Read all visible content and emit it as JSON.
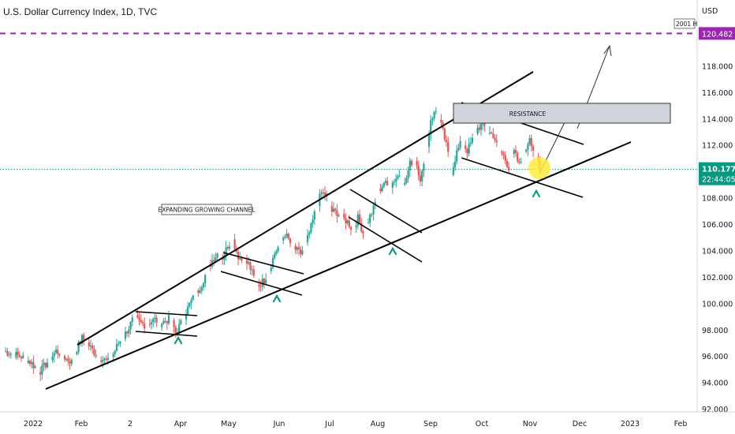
{
  "title": "U.S. Dollar Currency Index, 1D, TVC",
  "currency": "USD",
  "colors": {
    "up": "#26a69a",
    "down": "#ef5350",
    "line": "#000000",
    "dashed_level": "#9c27b0",
    "current_price": "#089981",
    "highlight": "#ffeb3b",
    "support_marker": "#089981",
    "resistance_fill": "#d1d4dc"
  },
  "chart_data": {
    "type": "candlestick",
    "title": "U.S. Dollar Currency Index, 1D, TVC",
    "y_unit": "USD",
    "ylim": [
      92,
      120.9
    ],
    "y_ticks": [
      "92.000",
      "94.000",
      "96.000",
      "98.000",
      "100.000",
      "102.000",
      "104.000",
      "106.000",
      "108.000",
      "110.000",
      "112.000",
      "114.000",
      "116.000",
      "118.000"
    ],
    "x_ticks": [
      "2022",
      "Feb",
      "2",
      "Apr",
      "May",
      "Jun",
      "Jul",
      "Aug",
      "Sep",
      "Oct",
      "Nov",
      "Dec",
      "2023",
      "Feb"
    ],
    "price_path_days": [
      0,
      5,
      10,
      15,
      18,
      21,
      24,
      27,
      30,
      33,
      36,
      39,
      42,
      45,
      48,
      51,
      54,
      57,
      60,
      63,
      66,
      69,
      72,
      75,
      78,
      81,
      84,
      87,
      90,
      93,
      96,
      99,
      102,
      105,
      108,
      111,
      114,
      117,
      120,
      123,
      126,
      129,
      132,
      135,
      138,
      141,
      144,
      147,
      150,
      153,
      156,
      159,
      162,
      165,
      168,
      171,
      174,
      177,
      180,
      183,
      186,
      189,
      192,
      195,
      198,
      201,
      204,
      207,
      210,
      213,
      216,
      219,
      222,
      225,
      228,
      231,
      234,
      237,
      240,
      243,
      246,
      249,
      252,
      255,
      258,
      261,
      264,
      267,
      270,
      273,
      276,
      279,
      282,
      285,
      288,
      291,
      294,
      297,
      300,
      303,
      306,
      309
    ],
    "price_path_close": [
      96.4,
      96.2,
      96.0,
      95.6,
      95.2,
      94.9,
      95.4,
      95.9,
      96.4,
      96.2,
      95.8,
      95.6,
      96.6,
      97.4,
      97.0,
      96.5,
      96.0,
      95.8,
      95.6,
      96.2,
      97.0,
      97.5,
      98.2,
      99.0,
      98.6,
      98.4,
      98.6,
      98.8,
      98.5,
      98.7,
      98.9,
      97.8,
      98.5,
      99.4,
      100.2,
      100.8,
      101.5,
      102.5,
      103.3,
      103.8,
      103.5,
      104.4,
      104.8,
      103.6,
      103.2,
      103.0,
      102.0,
      101.4,
      101.8,
      102.6,
      103.8,
      104.5,
      105.3,
      104.6,
      104.1,
      103.8,
      104.5,
      105.8,
      107.3,
      108.4,
      108.2,
      107.0,
      106.9,
      106.5,
      106.2,
      105.6,
      106.5,
      105.4,
      106.3,
      107.2,
      108.5,
      109.2,
      108.8,
      109.4,
      109.8,
      109.0,
      110.6,
      111.0,
      109.5,
      110.8,
      114.0,
      114.6,
      113.5,
      112.0,
      110.0,
      111.5,
      112.3,
      111.6,
      112.4,
      113.3,
      113.6,
      113.0,
      112.8,
      111.7,
      111.2,
      110.3,
      111.5,
      110.5,
      111.3,
      112.7,
      111.2,
      110.18
    ],
    "last_price": "110.177",
    "countdown": "22:44:05",
    "level_label": "120.482",
    "level_value": 120.482,
    "level_tag": "2001 H",
    "annotations": {
      "resistance_label": "RESISTANCE",
      "channel_label": "EXPANDING GROWING CHANNEL"
    }
  }
}
